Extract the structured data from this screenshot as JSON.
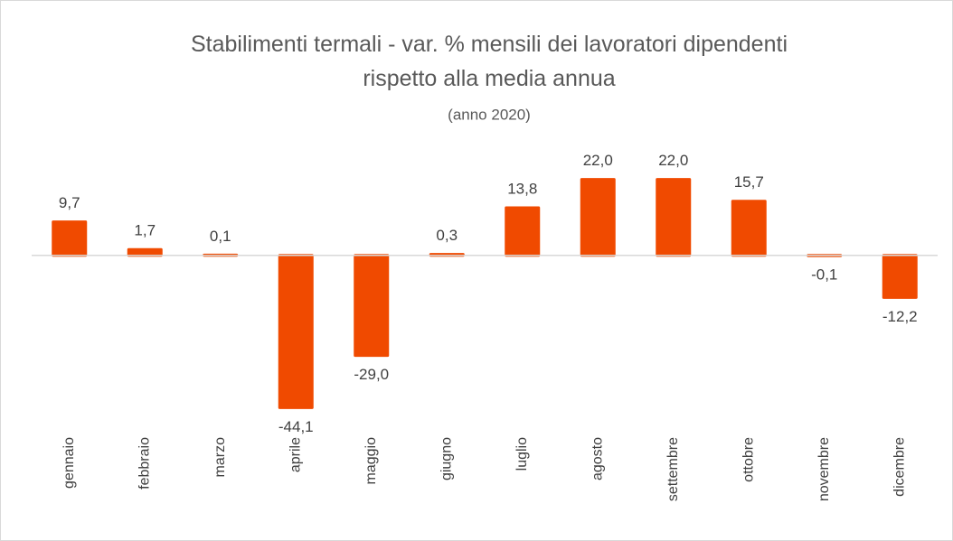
{
  "chart_data": {
    "type": "bar",
    "title": "Stabilimenti termali - var. % mensili dei lavoratori dipendenti rispetto alla media annua",
    "subtitle": "(anno 2020)",
    "categories": [
      "gennaio",
      "febbraio",
      "marzo",
      "aprile",
      "maggio",
      "giugno",
      "luglio",
      "agosto",
      "settembre",
      "ottobre",
      "novembre",
      "dicembre"
    ],
    "values": [
      9.7,
      1.7,
      0.1,
      -44.1,
      -29.0,
      0.3,
      13.8,
      22.0,
      22.0,
      15.7,
      -0.1,
      -12.2
    ],
    "value_labels": [
      "9,7",
      "1,7",
      "0,1",
      "-44,1",
      "-29,0",
      "0,3",
      "13,8",
      "22,0",
      "22,0",
      "15,7",
      "-0,1",
      "-12,2"
    ],
    "color": "#f04a00",
    "ylim": [
      -50,
      30
    ]
  }
}
